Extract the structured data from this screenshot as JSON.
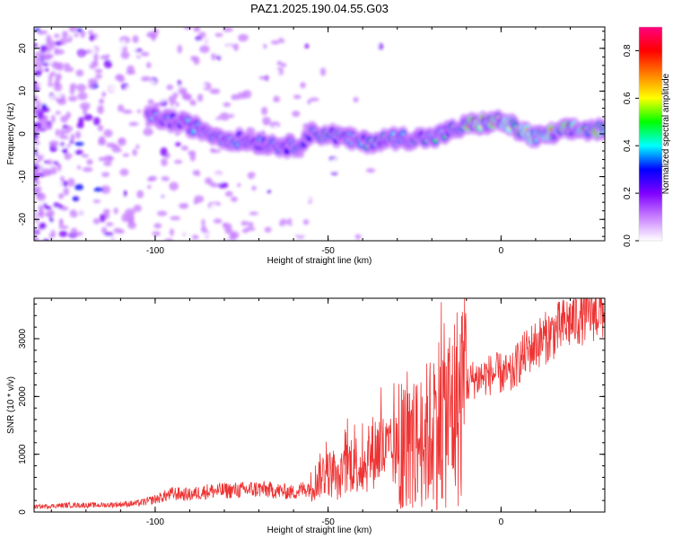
{
  "title": "PAZ1.2025.190.04.55.G03",
  "chart_data": [
    {
      "type": "heatmap",
      "xlabel": "Height of straight line (km)",
      "ylabel": "Frequency (Hz)",
      "xlim": [
        -135,
        30
      ],
      "ylim": [
        -25,
        25
      ],
      "xticks": [
        -100,
        -50,
        0
      ],
      "yticks": [
        -20,
        -10,
        0,
        10,
        20
      ],
      "colorbar": {
        "label": "Normalized spectral amplitude",
        "range": [
          0,
          0.9
        ],
        "ticks": [
          0.0,
          0.2,
          0.4,
          0.6,
          0.8
        ],
        "colors": [
          "#ffffff",
          "#c880ff",
          "#8000ff",
          "#0000ff",
          "#00ffff",
          "#00ff00",
          "#ffff00",
          "#ff8000",
          "#ff0000",
          "#ff0080"
        ]
      },
      "ridge": [
        {
          "x": -100,
          "y": 4
        },
        {
          "x": -90,
          "y": 2
        },
        {
          "x": -80,
          "y": -1
        },
        {
          "x": -70,
          "y": -2
        },
        {
          "x": -60,
          "y": -3
        },
        {
          "x": -55,
          "y": 0
        },
        {
          "x": -50,
          "y": 0
        },
        {
          "x": -40,
          "y": -2
        },
        {
          "x": -30,
          "y": -1
        },
        {
          "x": -20,
          "y": -1
        },
        {
          "x": -10,
          "y": 2
        },
        {
          "x": 0,
          "y": 3
        },
        {
          "x": 5,
          "y": 1
        },
        {
          "x": 10,
          "y": -1
        },
        {
          "x": 20,
          "y": 1
        },
        {
          "x": 30,
          "y": 1
        }
      ]
    },
    {
      "type": "line",
      "xlabel": "Height of straight line (km)",
      "ylabel": "SNR (10 * v/v)",
      "xlim": [
        -135,
        30
      ],
      "ylim": [
        0,
        3700
      ],
      "xticks": [
        -100,
        -50,
        0
      ],
      "yticks": [
        0,
        1000,
        2000,
        3000
      ],
      "color": "#ee3333",
      "series": [
        {
          "x": [
            -135,
            -125,
            -115,
            -105,
            -100,
            -95,
            -90,
            -85,
            -80,
            -75,
            -70,
            -65,
            -60,
            -55,
            -52,
            -50,
            -47,
            -45,
            -43,
            -40,
            -37,
            -35,
            -32,
            -30,
            -28,
            -25,
            -22,
            -20,
            -18,
            -15,
            -12,
            -10,
            -8,
            -5,
            -3,
            0,
            3,
            5,
            8,
            10,
            15,
            20,
            25,
            30
          ],
          "y": [
            90,
            120,
            120,
            150,
            220,
            320,
            300,
            360,
            370,
            380,
            400,
            370,
            340,
            440,
            650,
            700,
            520,
            720,
            900,
            760,
            1050,
            1100,
            1000,
            1050,
            1100,
            1150,
            1300,
            1400,
            1600,
            1700,
            1900,
            2200,
            2300,
            2350,
            2380,
            2400,
            2350,
            2600,
            2800,
            2900,
            3100,
            3300,
            3450,
            3500
          ]
        }
      ]
    }
  ]
}
